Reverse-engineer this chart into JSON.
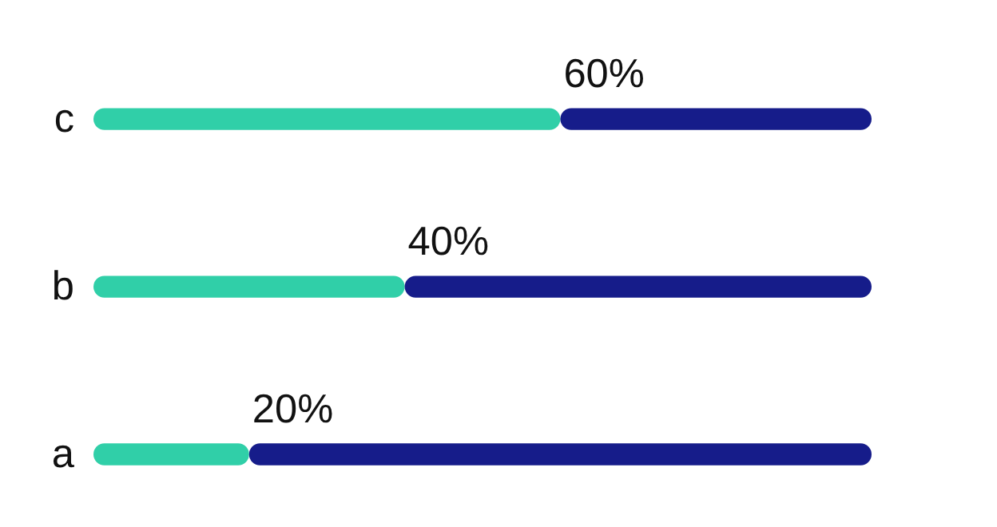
{
  "chart_data": {
    "type": "bar",
    "orientation": "horizontal",
    "stacked": true,
    "categories": [
      "c",
      "b",
      "a"
    ],
    "series": [
      {
        "color": "#30cfa8",
        "values": [
          60,
          40,
          20
        ],
        "value_labels": [
          "60%",
          "40%",
          "20%"
        ]
      },
      {
        "color": "#161c8a",
        "values": [
          40,
          60,
          80
        ]
      }
    ],
    "xlim": [
      0,
      100
    ],
    "tick_labels": "y",
    "grid": false
  }
}
